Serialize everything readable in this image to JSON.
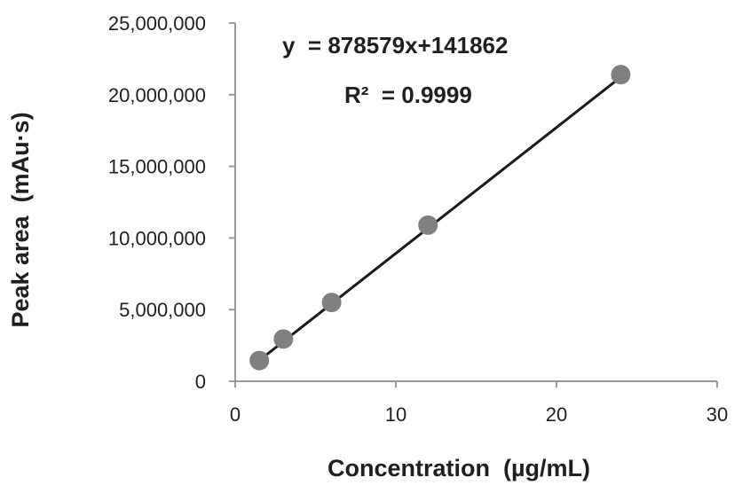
{
  "chart_data": {
    "type": "scatter",
    "xlabel": "Concentration  (µg/mL)",
    "ylabel": "Peak area  (mAu·s)",
    "xlim": [
      0,
      30
    ],
    "ylim": [
      0,
      25000000
    ],
    "xticks": [
      0,
      10,
      20,
      30
    ],
    "yticks": [
      0,
      5000000,
      10000000,
      15000000,
      20000000,
      25000000
    ],
    "xtick_labels": [
      "0",
      "10",
      "20",
      "30"
    ],
    "ytick_labels": [
      "0",
      "5,000,000",
      "10,000,000",
      "15,000,000",
      "20,000,000",
      "25,000,000"
    ],
    "grid": false,
    "series": [
      {
        "points": [
          {
            "x": 1.5,
            "y": 1450000
          },
          {
            "x": 3,
            "y": 2950000
          },
          {
            "x": 6,
            "y": 5500000
          },
          {
            "x": 12,
            "y": 10900000
          },
          {
            "x": 24,
            "y": 21400000
          }
        ],
        "marker_color": "#808080"
      }
    ],
    "trendline": {
      "slope": 878579,
      "intercept": 141862,
      "x_range": [
        1.5,
        24
      ],
      "color": "#1a1a1a"
    },
    "annotations": {
      "equation": "y  = 878579x+141862",
      "r_squared": "R²  = 0.9999"
    }
  }
}
